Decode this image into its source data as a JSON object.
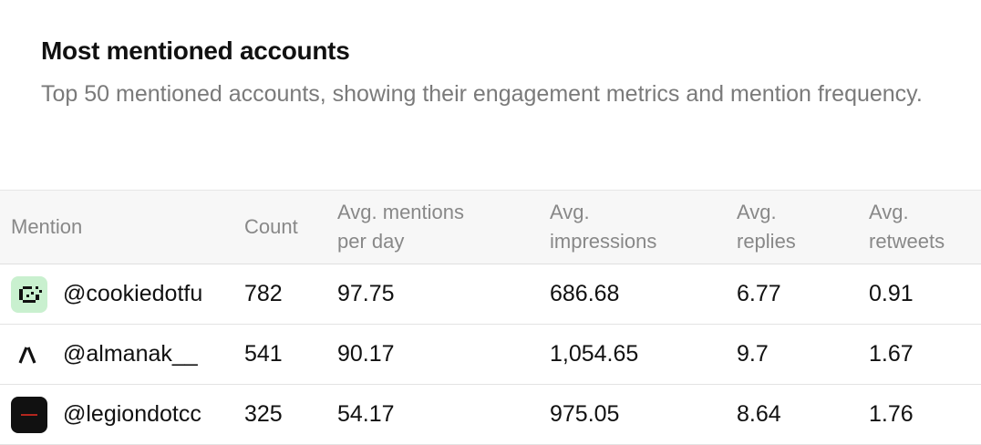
{
  "header": {
    "title": "Most mentioned accounts",
    "subtitle": "Top 50 mentioned accounts, showing their engagement metrics and mention frequency."
  },
  "table": {
    "columns": [
      "Mention",
      "Count",
      "Avg. mentions per day",
      "Avg. impressions",
      "Avg. replies",
      "Avg. retweets"
    ],
    "rows": [
      [
        "@cookiedotfu",
        "782",
        "97.75",
        "686.68",
        "6.77",
        "0.91"
      ],
      [
        "@almanak__",
        "541",
        "90.17",
        "1,054.65",
        "9.7",
        "1.67"
      ],
      [
        "@legiondotcc",
        "325",
        "54.17",
        "975.05",
        "8.64",
        "1.76"
      ]
    ]
  }
}
